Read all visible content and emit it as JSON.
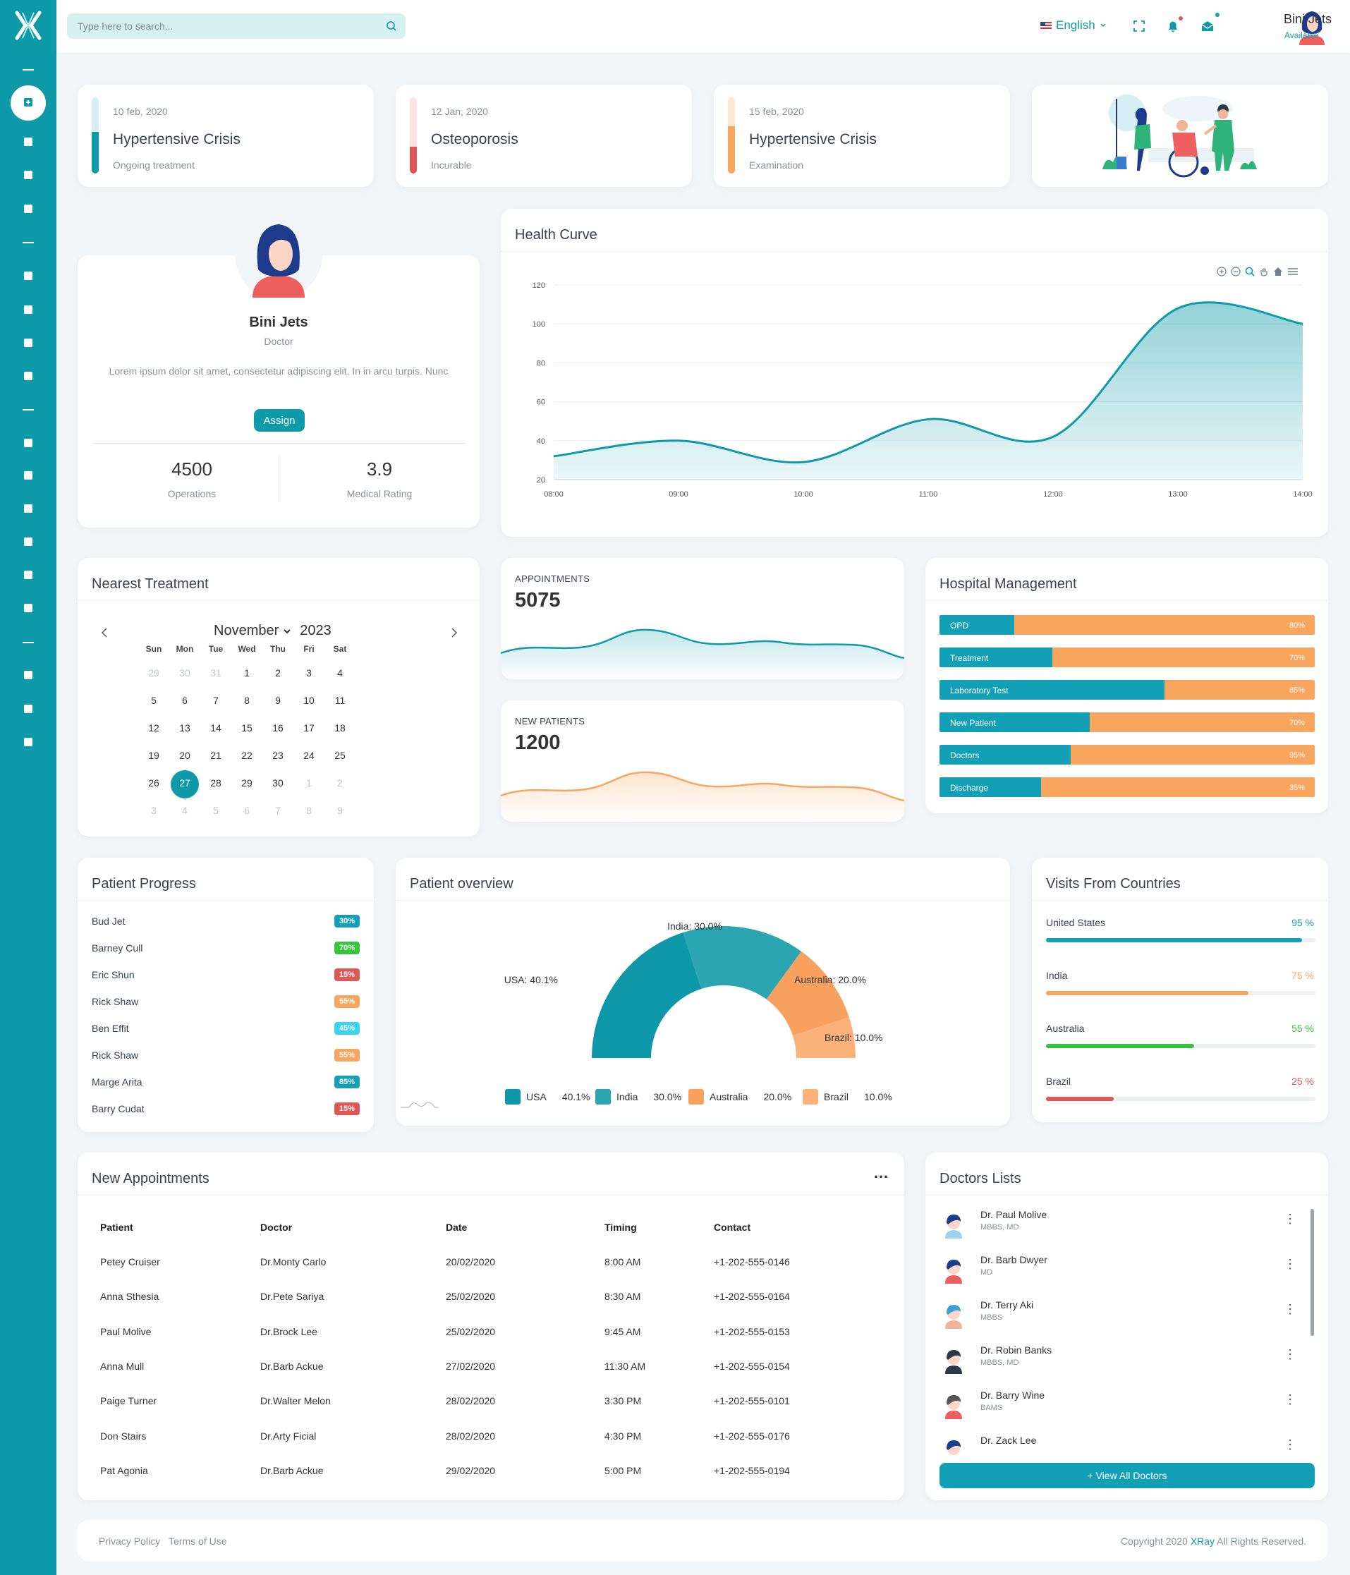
{
  "colors": {
    "primary": "#0e9aa8",
    "orange": "#f8a55f",
    "red": "#e05555",
    "green": "#37c33c",
    "cyan": "#3ad4f0"
  },
  "search": {
    "placeholder": "Type here to search..."
  },
  "topbar": {
    "language": "English",
    "user_name": "Bini Jets",
    "user_status": "Available"
  },
  "sidebar": {
    "icons": [
      "hospital-icon",
      "home-icon",
      "briefcase-icon",
      "users-icon",
      "mail-icon",
      "user-icon",
      "calendar-icon",
      "chat-icon",
      "apps-icon",
      "copy-icon",
      "file-icon",
      "table-icon",
      "chart-icon",
      "disc-icon",
      "layout-icon",
      "location-icon",
      "images-icon"
    ]
  },
  "diagnoses": [
    {
      "date": "10 feb, 2020",
      "title": "Hypertensive Crisis",
      "status": "Ongoing treatment",
      "level": 0.55
    },
    {
      "date": "12 Jan, 2020",
      "title": "Osteoporosis",
      "status": "Incurable",
      "level": 0.35
    },
    {
      "date": "15 feb, 2020",
      "title": "Hypertensive Crisis",
      "status": "Examination",
      "level": 0.62
    }
  ],
  "profile": {
    "name": "Bini Jets",
    "role": "Doctor",
    "description": "Lorem ipsum dolor sit amet, consectetur adipiscing elit. In in arcu turpis. Nunc",
    "assign_label": "Assign",
    "operations": "4500",
    "operations_label": "Operations",
    "rating": "3.9",
    "rating_label": "Medical Rating"
  },
  "health_curve": {
    "title": "Health Curve"
  },
  "chart_data": [
    {
      "type": "area",
      "x": [
        "08:00",
        "09:00",
        "10:00",
        "11:00",
        "12:00",
        "13:00",
        "14:00"
      ],
      "y_ticks": [
        20,
        40,
        60,
        80,
        100,
        120
      ],
      "ylim": [
        20,
        120
      ],
      "series": [
        {
          "values": [
            32,
            40,
            29,
            51,
            42,
            108,
            100
          ]
        }
      ]
    },
    {
      "type": "line",
      "title": "APPOINTMENTS",
      "value": "5075"
    },
    {
      "type": "line",
      "title": "NEW PATIENTS",
      "value": "1200"
    },
    {
      "type": "pie",
      "title": "Patient overview",
      "labels": [
        "USA",
        "India",
        "Australia",
        "Brazil"
      ],
      "values": [
        40.1,
        30.0,
        20.0,
        10.0
      ],
      "data_labels": [
        "USA: 40.1%",
        "India: 30.0%",
        "Australia: 20.0%",
        "Brazil: 10.0%"
      ],
      "legend_values": [
        "40.1%",
        "30.0%",
        "20.0%",
        "10.0%"
      ]
    }
  ],
  "nearest_treatment": {
    "title": "Nearest Treatment",
    "month": "November",
    "year": "2023",
    "weekdays": [
      "Sun",
      "Mon",
      "Tue",
      "Wed",
      "Thu",
      "Fri",
      "Sat"
    ],
    "days": [
      [
        "29",
        "30",
        "31",
        "1",
        "2",
        "3",
        "4"
      ],
      [
        "5",
        "6",
        "7",
        "8",
        "9",
        "10",
        "11"
      ],
      [
        "12",
        "13",
        "14",
        "15",
        "16",
        "17",
        "18"
      ],
      [
        "19",
        "20",
        "21",
        "22",
        "23",
        "24",
        "25"
      ],
      [
        "26",
        "27",
        "28",
        "29",
        "30",
        "1",
        "2"
      ],
      [
        "3",
        "4",
        "5",
        "6",
        "7",
        "8",
        "9"
      ]
    ],
    "selected": "27"
  },
  "hospital_management": {
    "title": "Hospital Management",
    "rows": [
      {
        "label": "OPD",
        "pct": "80%",
        "fill": 0.2
      },
      {
        "label": "Treatment",
        "pct": "70%",
        "fill": 0.3
      },
      {
        "label": "Laboratory Test",
        "pct": "85%",
        "fill": 0.6
      },
      {
        "label": "New Patient",
        "pct": "70%",
        "fill": 0.4
      },
      {
        "label": "Doctors",
        "pct": "95%",
        "fill": 0.35
      },
      {
        "label": "Discharge",
        "pct": "35%",
        "fill": 0.27
      }
    ]
  },
  "patient_progress": {
    "title": "Patient Progress",
    "rows": [
      {
        "name": "Bud Jet",
        "pct": "30%",
        "color": "#13a0b7"
      },
      {
        "name": "Barney Cull",
        "pct": "70%",
        "color": "#37c33c"
      },
      {
        "name": "Eric Shun",
        "pct": "15%",
        "color": "#e05555"
      },
      {
        "name": "Rick Shaw",
        "pct": "55%",
        "color": "#f8a55f"
      },
      {
        "name": "Ben Effit",
        "pct": "45%",
        "color": "#3ad4f0"
      },
      {
        "name": "Rick Shaw",
        "pct": "55%",
        "color": "#f8a55f"
      },
      {
        "name": "Marge Arita",
        "pct": "85%",
        "color": "#13a0b7"
      },
      {
        "name": "Barry Cudat",
        "pct": "15%",
        "color": "#e05555"
      }
    ]
  },
  "visits": {
    "title": "Visits From Countries",
    "rows": [
      {
        "country": "United States",
        "pct": "95 %",
        "value": 0.95,
        "color": "#13a0b7"
      },
      {
        "country": "India",
        "pct": "75 %",
        "value": 0.75,
        "color": "#f8a55f"
      },
      {
        "country": "Australia",
        "pct": "55 %",
        "value": 0.55,
        "color": "#37c33c"
      },
      {
        "country": "Brazil",
        "pct": "25 %",
        "value": 0.25,
        "color": "#e05555"
      }
    ]
  },
  "appointments": {
    "title": "New Appointments",
    "more": "…",
    "headers": [
      "Patient",
      "Doctor",
      "Date",
      "Timing",
      "Contact"
    ],
    "rows": [
      [
        "Petey Cruiser",
        "Dr.Monty Carlo",
        "20/02/2020",
        "8:00 AM",
        "+1-202-555-0146"
      ],
      [
        "Anna Sthesia",
        "Dr.Pete Sariya",
        "25/02/2020",
        "8:30 AM",
        "+1-202-555-0164"
      ],
      [
        "Paul Molive",
        "Dr.Brock Lee",
        "25/02/2020",
        "9:45 AM",
        "+1-202-555-0153"
      ],
      [
        "Anna Mull",
        "Dr.Barb Ackue",
        "27/02/2020",
        "11:30 AM",
        "+1-202-555-0154"
      ],
      [
        "Paige Turner",
        "Dr.Walter Melon",
        "28/02/2020",
        "3:30 PM",
        "+1-202-555-0101"
      ],
      [
        "Don Stairs",
        "Dr.Arty Ficial",
        "28/02/2020",
        "4:30 PM",
        "+1-202-555-0176"
      ],
      [
        "Pat Agonia",
        "Dr.Barb Ackue",
        "29/02/2020",
        "5:00 PM",
        "+1-202-555-0194"
      ]
    ]
  },
  "doctors": {
    "title": "Doctors Lists",
    "view_all": "+ View All Doctors",
    "items": [
      {
        "name": "Dr. Paul Molive",
        "degree": "MBBS, MD"
      },
      {
        "name": "Dr. Barb Dwyer",
        "degree": "MD"
      },
      {
        "name": "Dr. Terry Aki",
        "degree": "MBBS"
      },
      {
        "name": "Dr. Robin Banks",
        "degree": "MBBS, MD"
      },
      {
        "name": "Dr. Barry Wine",
        "degree": "BAMS"
      },
      {
        "name": "Dr. Zack Lee",
        "degree": ""
      }
    ]
  },
  "footer": {
    "privacy": "Privacy Policy",
    "terms": "Terms of Use",
    "copyright_pre": "Copyright 2020",
    "brand": "XRay",
    "copyright_post": "All Rights Reserved."
  }
}
